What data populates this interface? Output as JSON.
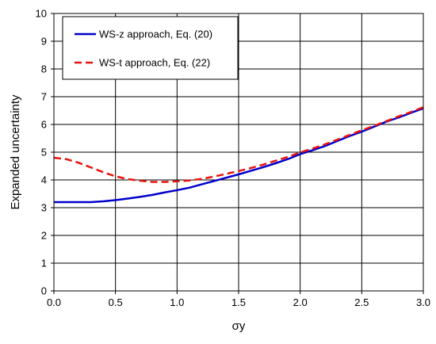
{
  "chart_data": {
    "type": "line",
    "xlabel": "σy",
    "ylabel": "Expanded uncertainty",
    "xlim": [
      0,
      3
    ],
    "ylim": [
      0,
      10
    ],
    "xticks": [
      "0.0",
      "0.5",
      "1.0",
      "1.5",
      "2.0",
      "2.5",
      "3.0"
    ],
    "yticks": [
      "0",
      "1",
      "2",
      "3",
      "4",
      "5",
      "6",
      "7",
      "8",
      "9",
      "10"
    ],
    "grid": true,
    "legend_position": "top-left",
    "series": [
      {
        "name": "WS-z approach, Eq. (20)",
        "color": "#0000cc",
        "style": "solid",
        "x": [
          0.0,
          0.1,
          0.2,
          0.3,
          0.4,
          0.5,
          0.6,
          0.7,
          0.8,
          0.9,
          1.0,
          1.1,
          1.2,
          1.3,
          1.4,
          1.5,
          1.6,
          1.7,
          1.8,
          1.9,
          2.0,
          2.1,
          2.2,
          2.3,
          2.4,
          2.5,
          2.6,
          2.7,
          2.8,
          2.9,
          3.0
        ],
        "y": [
          3.2,
          3.2,
          3.2,
          3.2,
          3.23,
          3.27,
          3.33,
          3.39,
          3.46,
          3.55,
          3.63,
          3.72,
          3.84,
          3.96,
          4.08,
          4.2,
          4.33,
          4.46,
          4.6,
          4.75,
          4.93,
          5.07,
          5.22,
          5.4,
          5.58,
          5.74,
          5.92,
          6.1,
          6.25,
          6.42,
          6.58
        ]
      },
      {
        "name": "WS-t approach, Eq. (22)",
        "color": "#e8130e",
        "style": "dashed",
        "x": [
          0.0,
          0.1,
          0.2,
          0.3,
          0.4,
          0.5,
          0.6,
          0.7,
          0.8,
          0.9,
          1.0,
          1.1,
          1.2,
          1.3,
          1.4,
          1.5,
          1.6,
          1.7,
          1.8,
          1.9,
          2.0,
          2.1,
          2.2,
          2.3,
          2.4,
          2.5,
          2.6,
          2.7,
          2.8,
          2.9,
          3.0
        ],
        "y": [
          4.8,
          4.75,
          4.62,
          4.45,
          4.28,
          4.13,
          4.03,
          3.97,
          3.93,
          3.93,
          3.95,
          3.98,
          4.04,
          4.12,
          4.22,
          4.32,
          4.43,
          4.55,
          4.69,
          4.83,
          4.99,
          5.13,
          5.28,
          5.45,
          5.62,
          5.79,
          5.95,
          6.12,
          6.29,
          6.45,
          6.62
        ]
      }
    ]
  }
}
